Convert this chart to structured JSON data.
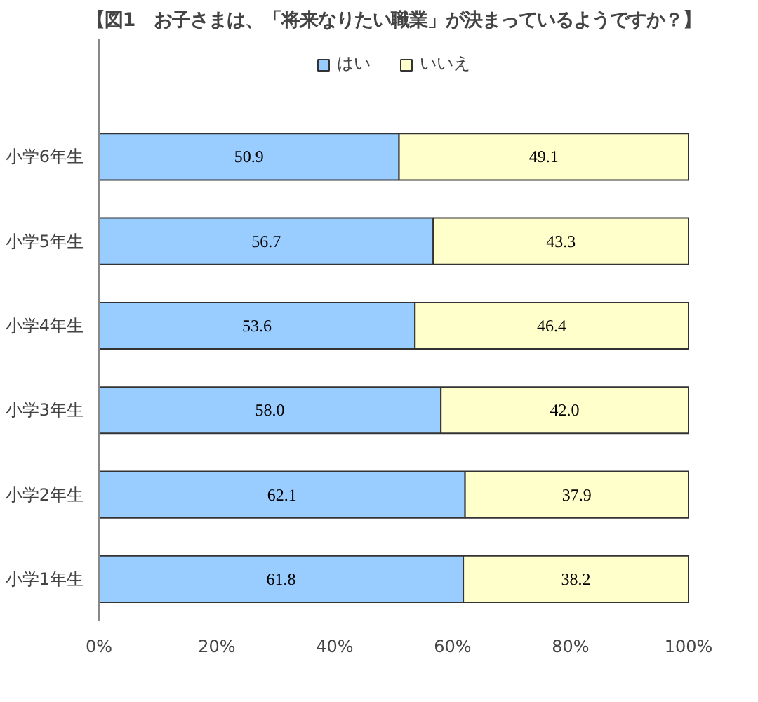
{
  "chart_data": {
    "type": "bar",
    "orientation": "horizontal",
    "stacked": true,
    "title": "【図1　お子さまは、「将来なりたい職業」が決まっているようですか？】",
    "categories": [
      "小学6年生",
      "小学5年生",
      "小学4年生",
      "小学3年生",
      "小学2年生",
      "小学1年生"
    ],
    "series": [
      {
        "name": "はい",
        "color": "#99ccff",
        "values": [
          50.9,
          56.7,
          53.6,
          58.0,
          62.1,
          61.8
        ],
        "value_labels": [
          "50.9",
          "56.7",
          "53.6",
          "58.0",
          "62.1",
          "61.8"
        ]
      },
      {
        "name": "いいえ",
        "color": "#ffffcc",
        "values": [
          49.1,
          43.3,
          46.4,
          42.0,
          37.9,
          38.2
        ],
        "value_labels": [
          "49.1",
          "43.3",
          "46.4",
          "42.0",
          "37.9",
          "38.2"
        ]
      }
    ],
    "xlim": [
      0,
      100
    ],
    "xticks": [
      {
        "value": 0,
        "label": "0%"
      },
      {
        "value": 20,
        "label": "20%"
      },
      {
        "value": 40,
        "label": "40%"
      },
      {
        "value": 60,
        "label": "60%"
      },
      {
        "value": 80,
        "label": "80%"
      },
      {
        "value": 100,
        "label": "100%"
      }
    ],
    "legend": "top",
    "grid": false
  }
}
